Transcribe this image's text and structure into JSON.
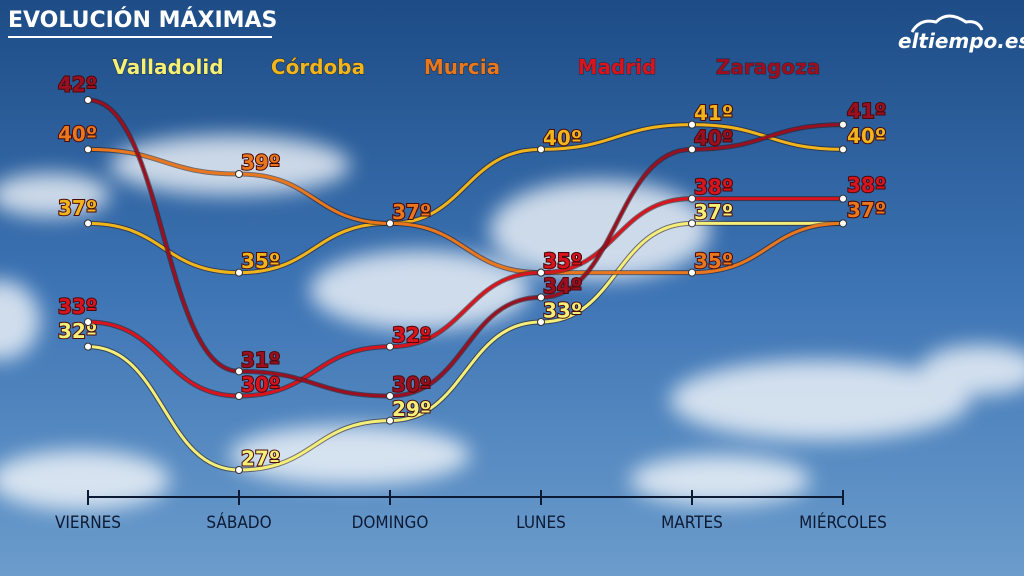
{
  "chart_data": {
    "type": "line",
    "title": "EVOLUCIÓN MÁXIMAS",
    "brand": "eltiempo.es",
    "categories": [
      "VIERNES",
      "SÁBADO",
      "DOMINGO",
      "LUNES",
      "MARTES",
      "MIÉRCOLES"
    ],
    "series": [
      {
        "name": "Valladolid",
        "color": "#f3ef78",
        "values": [
          32,
          27,
          29,
          33,
          37,
          37
        ],
        "value_labels": [
          "32º",
          "27º",
          "29º",
          "33º",
          "37º",
          "37º"
        ]
      },
      {
        "name": "Córdoba",
        "color": "#f0b41c",
        "values": [
          37,
          35,
          37,
          40,
          41,
          40
        ],
        "value_labels": [
          "37º",
          "35º",
          "37º",
          "40º",
          "41º",
          "40º"
        ]
      },
      {
        "name": "Murcia",
        "color": "#e8771e",
        "values": [
          40,
          39,
          37,
          35,
          35,
          37
        ],
        "value_labels": [
          "40º",
          "39º",
          "37º",
          "35º",
          "35º",
          "37º"
        ]
      },
      {
        "name": "Madrid",
        "color": "#d8141e",
        "values": [
          33,
          30,
          32,
          35,
          38,
          38
        ],
        "value_labels": [
          "33º",
          "30º",
          "32º",
          "35º",
          "38º",
          "38º"
        ]
      },
      {
        "name": "Zaragoza",
        "color": "#9a1020",
        "values": [
          42,
          31,
          30,
          34,
          40,
          41
        ],
        "value_labels": [
          "42º",
          "31º",
          "30º",
          "34º",
          "40º",
          "41º"
        ]
      }
    ]
  }
}
